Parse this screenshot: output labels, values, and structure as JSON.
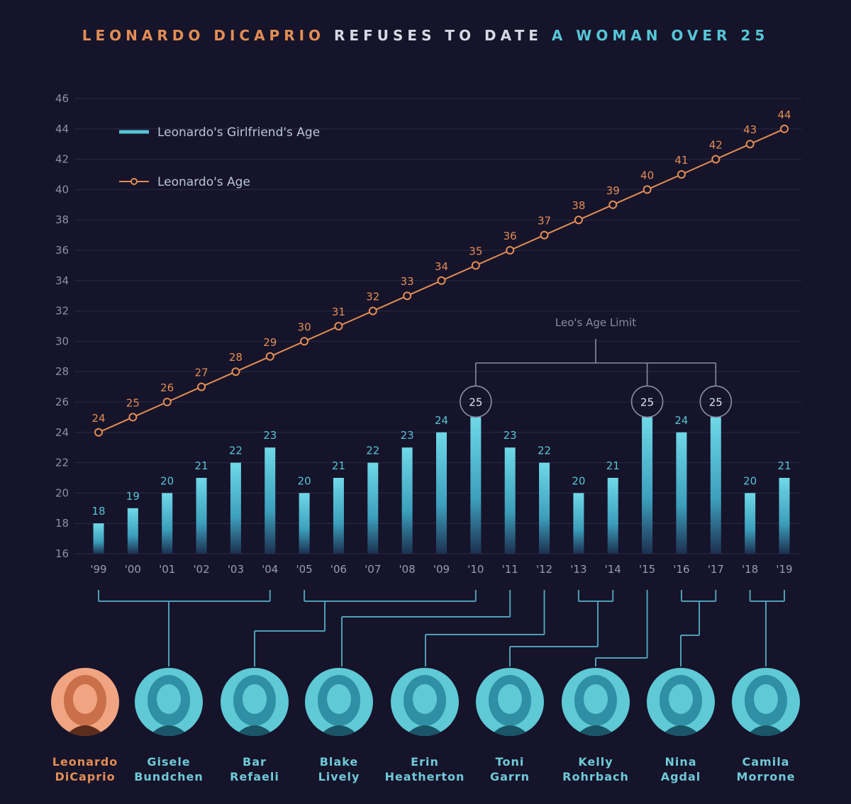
{
  "title": {
    "part1": "LEONARDO DICAPRIO",
    "part2": "REFUSES TO DATE",
    "part3": "A WOMAN OVER 25"
  },
  "colors": {
    "background": "#16142a",
    "bar": "#55c5d6",
    "line": "#e38d55",
    "grid": "#2a2a48",
    "connector": "#4d9fb6"
  },
  "chart_data": {
    "type": "bar",
    "title": "LEONARDO DICAPRIO REFUSES TO DATE A WOMAN OVER 25",
    "categories": [
      "'99",
      "'00",
      "'01",
      "'02",
      "'03",
      "'04",
      "'05",
      "'06",
      "'07",
      "'08",
      "'09",
      "'10",
      "'11",
      "'12",
      "'13",
      "'14",
      "'15",
      "'16",
      "'17",
      "'18",
      "'19"
    ],
    "series": [
      {
        "name": "Leonardo's Girlfriend's Age",
        "type": "bar",
        "values": [
          18,
          19,
          20,
          21,
          22,
          23,
          20,
          21,
          22,
          23,
          24,
          25,
          23,
          22,
          20,
          21,
          25,
          24,
          25,
          20,
          21
        ]
      },
      {
        "name": "Leonardo's Age",
        "type": "line",
        "values": [
          24,
          25,
          26,
          27,
          28,
          29,
          30,
          31,
          32,
          33,
          34,
          35,
          36,
          37,
          38,
          39,
          40,
          41,
          42,
          43,
          44
        ]
      }
    ],
    "yticks": [
      16,
      18,
      20,
      22,
      24,
      26,
      28,
      30,
      32,
      34,
      36,
      38,
      40,
      42,
      44,
      46
    ],
    "ylim": [
      16,
      46
    ],
    "grid": true,
    "legend_position": "top-left",
    "annotation": {
      "text": "Leo's Age Limit",
      "highlighted_categories": [
        "'10",
        "'15",
        "'17"
      ],
      "value": 25
    }
  },
  "people": [
    {
      "first": "Leonardo",
      "last": "DiCaprio",
      "highlight": true
    },
    {
      "first": "Gisele",
      "last": "Bundchen",
      "highlight": false
    },
    {
      "first": "Bar",
      "last": "Refaeli",
      "highlight": false
    },
    {
      "first": "Blake",
      "last": "Lively",
      "highlight": false
    },
    {
      "first": "Erin",
      "last": "Heatherton",
      "highlight": false
    },
    {
      "first": "Toni",
      "last": "Garrn",
      "highlight": false
    },
    {
      "first": "Kelly",
      "last": "Rohrbach",
      "highlight": false
    },
    {
      "first": "Nina",
      "last": "Agdal",
      "highlight": false
    },
    {
      "first": "Camila",
      "last": "Morrone",
      "highlight": false
    }
  ]
}
